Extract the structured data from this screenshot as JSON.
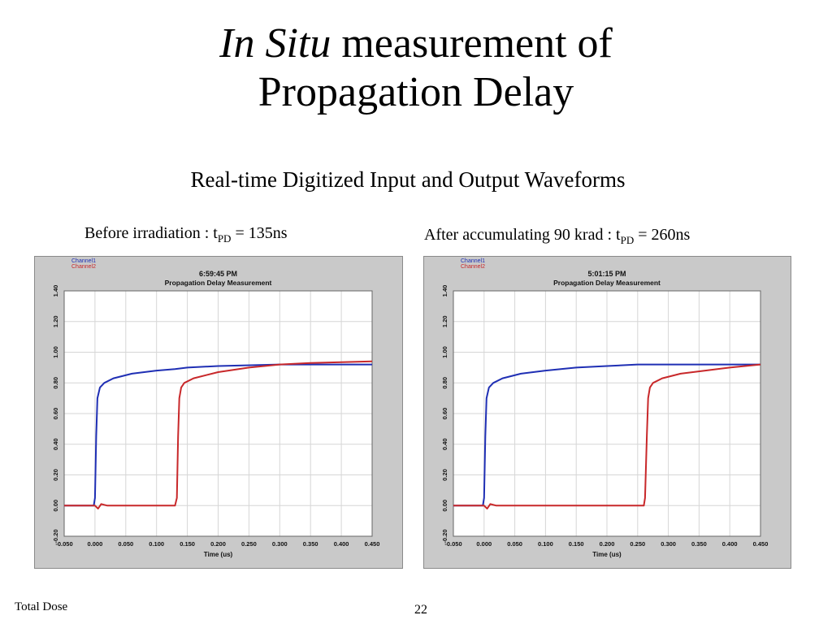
{
  "slide": {
    "title_italic": "In Situ",
    "title_rest": " measurement of",
    "title_line2": "Propagation Delay",
    "subtitle": "Real-time Digitized Input and Output Waveforms",
    "caption_left_pre": "Before irradiation : t",
    "caption_left_sub": "PD",
    "caption_left_post": " = 135ns",
    "caption_right_pre": "After accumulating 90 krad : t",
    "caption_right_sub": "PD",
    "caption_right_post": " = 260ns",
    "footer": "Total Dose",
    "page_number": "22"
  },
  "chart_data": [
    {
      "type": "line",
      "timestamp": "6:59:45 PM",
      "title": "Propagation Delay Measurement",
      "xlabel": "Time (us)",
      "ylabel": "",
      "xlim": [
        -0.05,
        0.45
      ],
      "ylim": [
        -0.2,
        1.4
      ],
      "x_ticks": [
        "-0.050",
        "0.000",
        "0.050",
        "0.100",
        "0.150",
        "0.200",
        "0.250",
        "0.300",
        "0.350",
        "0.400",
        "0.450"
      ],
      "y_ticks": [
        "-0.20",
        "0.00",
        "0.20",
        "0.40",
        "0.60",
        "0.80",
        "1.00",
        "1.20",
        "1.40"
      ],
      "grid": true,
      "legend_position": "top-left",
      "series": [
        {
          "name": "Channel1",
          "color": "#1f2fb4",
          "x": [
            -0.05,
            -0.005,
            -0.002,
            0.0,
            0.002,
            0.004,
            0.008,
            0.015,
            0.03,
            0.06,
            0.1,
            0.13,
            0.15,
            0.2,
            0.3,
            0.45
          ],
          "y": [
            0.0,
            0.0,
            0.0,
            0.05,
            0.45,
            0.7,
            0.77,
            0.8,
            0.83,
            0.86,
            0.88,
            0.89,
            0.9,
            0.91,
            0.92,
            0.92
          ]
        },
        {
          "name": "Channel2",
          "color": "#c8282a",
          "x": [
            -0.05,
            0.0,
            0.005,
            0.01,
            0.02,
            0.13,
            0.133,
            0.135,
            0.137,
            0.14,
            0.145,
            0.16,
            0.2,
            0.25,
            0.3,
            0.35,
            0.45
          ],
          "y": [
            0.0,
            0.0,
            -0.02,
            0.01,
            0.0,
            0.0,
            0.05,
            0.45,
            0.7,
            0.77,
            0.8,
            0.83,
            0.87,
            0.9,
            0.92,
            0.93,
            0.94
          ]
        }
      ]
    },
    {
      "type": "line",
      "timestamp": "5:01:15 PM",
      "title": "Propagation Delay Measurement",
      "xlabel": "Time (us)",
      "ylabel": "",
      "xlim": [
        -0.05,
        0.45
      ],
      "ylim": [
        -0.2,
        1.4
      ],
      "x_ticks": [
        "-0.050",
        "0.000",
        "0.050",
        "0.100",
        "0.150",
        "0.200",
        "0.250",
        "0.300",
        "0.350",
        "0.400",
        "0.450"
      ],
      "y_ticks": [
        "-0.20",
        "0.00",
        "0.20",
        "0.40",
        "0.60",
        "0.80",
        "1.00",
        "1.20",
        "1.40"
      ],
      "grid": true,
      "legend_position": "top-left",
      "series": [
        {
          "name": "Channel1",
          "color": "#1f2fb4",
          "x": [
            -0.05,
            -0.005,
            -0.002,
            0.0,
            0.002,
            0.004,
            0.008,
            0.015,
            0.03,
            0.06,
            0.1,
            0.15,
            0.2,
            0.25,
            0.3,
            0.45
          ],
          "y": [
            0.0,
            0.0,
            0.0,
            0.05,
            0.45,
            0.7,
            0.77,
            0.8,
            0.83,
            0.86,
            0.88,
            0.9,
            0.91,
            0.92,
            0.92,
            0.92
          ]
        },
        {
          "name": "Channel2",
          "color": "#c8282a",
          "x": [
            -0.05,
            0.0,
            0.005,
            0.01,
            0.02,
            0.26,
            0.262,
            0.265,
            0.267,
            0.27,
            0.275,
            0.29,
            0.32,
            0.36,
            0.4,
            0.45
          ],
          "y": [
            0.0,
            0.0,
            -0.02,
            0.01,
            0.0,
            0.0,
            0.05,
            0.45,
            0.7,
            0.77,
            0.8,
            0.83,
            0.86,
            0.88,
            0.9,
            0.92
          ]
        }
      ]
    }
  ]
}
